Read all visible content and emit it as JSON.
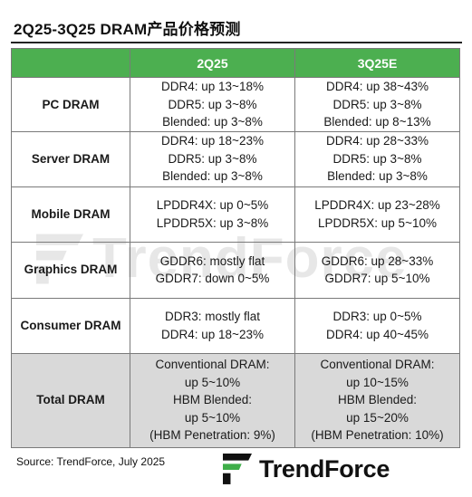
{
  "title": "2Q25-3Q25 DRAM产品价格预测",
  "table": {
    "headers": [
      "",
      "2Q25",
      "3Q25E"
    ],
    "rows": [
      {
        "category": "PC DRAM",
        "q2": [
          "DDR4: up 13~18%",
          "DDR5: up 3~8%",
          "Blended: up 3~8%"
        ],
        "q3": [
          "DDR4: up 38~43%",
          "DDR5: up 3~8%",
          "Blended: up 8~13%"
        ]
      },
      {
        "category": "Server DRAM",
        "q2": [
          "DDR4: up 18~23%",
          "DDR5: up 3~8%",
          "Blended: up 3~8%"
        ],
        "q3": [
          "DDR4: up 28~33%",
          "DDR5: up 3~8%",
          "Blended: up 3~8%"
        ]
      },
      {
        "category": "Mobile DRAM",
        "q2": [
          "LPDDR4X: up 0~5%",
          "LPDDR5X: up 3~8%"
        ],
        "q3": [
          "LPDDR4X: up 23~28%",
          "LPDDR5X: up 5~10%"
        ]
      },
      {
        "category": "Graphics DRAM",
        "q2": [
          "GDDR6: mostly flat",
          "GDDR7: down 0~5%"
        ],
        "q3": [
          "GDDR6: up 28~33%",
          "GDDR7: up 5~10%"
        ]
      },
      {
        "category": "Consumer DRAM",
        "q2": [
          "DDR3: mostly flat",
          "DDR4: up 18~23%"
        ],
        "q3": [
          "DDR3: up 0~5%",
          "DDR4: up 40~45%"
        ]
      },
      {
        "category": "Total DRAM",
        "q2": [
          "Conventional DRAM:",
          "up 5~10%",
          "HBM Blended:",
          "up 5~10%",
          "(HBM Penetration: 9%)"
        ],
        "q3": [
          "Conventional DRAM:",
          "up 10~15%",
          "HBM Blended:",
          "up 15~20%",
          "(HBM Penetration: 10%)"
        ]
      }
    ]
  },
  "source": "Source: TrendForce, July 2025",
  "logo": {
    "text": "TrendForce",
    "icon": "trendforce-logo-mark"
  },
  "watermark": {
    "text": "TrendForce"
  },
  "colors": {
    "header_bg": "#4caf50",
    "header_text": "#ffffff",
    "total_row_bg": "#d9d9d9",
    "border": "#7a7a7a",
    "logo_green": "#3fae49"
  }
}
